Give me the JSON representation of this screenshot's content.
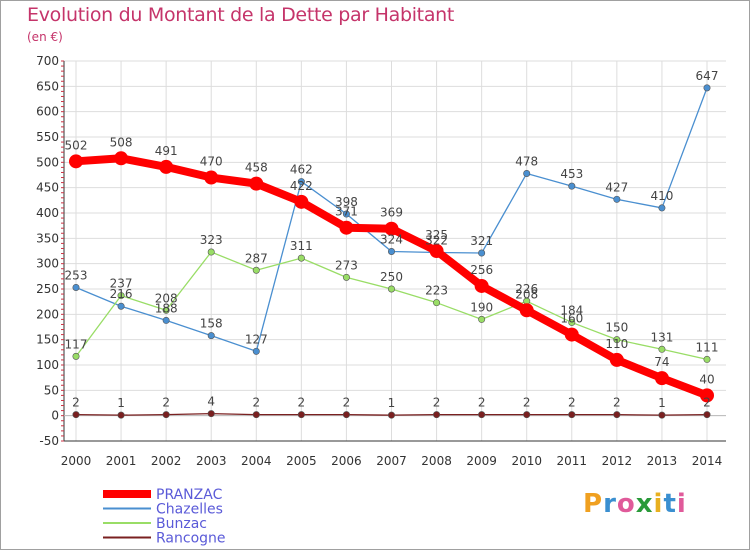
{
  "header": {
    "title": "Evolution du Montant de la Dette par Habitant",
    "unit": "(en €)"
  },
  "logo": {
    "text": "Proxiti",
    "letter_colors": [
      "#f0a020",
      "#3a8fd0",
      "#e05a9a",
      "#2a9a3a",
      "#e8b020",
      "#3a8fd0",
      "#e05a9a"
    ]
  },
  "chart_data": {
    "type": "line",
    "title": "Evolution du Montant de la Dette par Habitant",
    "ylabel": "(en €)",
    "xlabel": "",
    "x": [
      "2000",
      "2001",
      "2002",
      "2003",
      "2004",
      "2005",
      "2006",
      "2007",
      "2008",
      "2009",
      "2010",
      "2011",
      "2012",
      "2013",
      "2014"
    ],
    "ylim": [
      -50,
      700
    ],
    "yticks": [
      "-50",
      "0",
      "50",
      "100",
      "150",
      "200",
      "250",
      "300",
      "350",
      "400",
      "450",
      "500",
      "550",
      "600",
      "650",
      "700"
    ],
    "grid": true,
    "legend_position": "bottom-left",
    "series": [
      {
        "name": "PRANZAC",
        "color": "#ff0000",
        "values": [
          502,
          508,
          491,
          470,
          458,
          422,
          371,
          369,
          325,
          256,
          208,
          160,
          110,
          74,
          40
        ],
        "labels": [
          "502",
          "508",
          "491",
          "470",
          "458",
          "422",
          "371",
          "369",
          "325",
          "256",
          "208",
          "160",
          "110",
          "74",
          "40"
        ]
      },
      {
        "name": "Chazelles",
        "color": "#4a8fd0",
        "values": [
          253,
          216,
          188,
          158,
          127,
          462,
          398,
          324,
          322,
          321,
          478,
          453,
          427,
          410,
          647
        ],
        "labels": [
          "253",
          "216",
          "188",
          "158",
          "127",
          "462",
          "398",
          "324",
          "322",
          "321",
          "478",
          "453",
          "427",
          "410",
          "647"
        ]
      },
      {
        "name": "Bunzac",
        "color": "#99dd66",
        "values": [
          117,
          237,
          208,
          323,
          287,
          311,
          273,
          250,
          223,
          190,
          226,
          184,
          150,
          131,
          111
        ],
        "labels": [
          "117",
          "237",
          "208",
          "323",
          "287",
          "311",
          "273",
          "250",
          "223",
          "190",
          "226",
          "184",
          "150",
          "131",
          "111"
        ]
      },
      {
        "name": "Rancogne",
        "color": "#7a2020",
        "values": [
          2,
          1,
          2,
          4,
          2,
          2,
          2,
          1,
          2,
          2,
          2,
          2,
          2,
          1,
          2
        ],
        "labels": [
          "2",
          "1",
          "2",
          "4",
          "2",
          "2",
          "2",
          "1",
          "2",
          "2",
          "2",
          "2",
          "2",
          "1",
          "2"
        ]
      }
    ]
  }
}
